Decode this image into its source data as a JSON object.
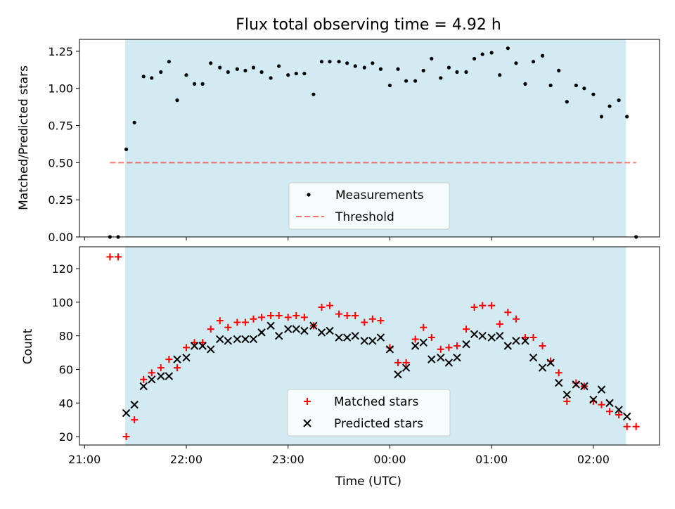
{
  "chart_data": [
    {
      "type": "scatter",
      "title": "Flux total observing time = 4.92 h",
      "ylabel": "Matched/Predicted stars",
      "ylim": [
        0,
        1.33
      ],
      "yticks": [
        "0.00",
        "0.25",
        "0.50",
        "0.75",
        "1.00",
        "1.25"
      ],
      "x_units": "hours after 21:00 UTC",
      "xlim": [
        -0.05,
        5.65
      ],
      "shaded_interval": {
        "start": 0.4,
        "end": 5.32,
        "color": "#add8e6"
      },
      "threshold": {
        "name": "Threshold",
        "value": 0.5,
        "x_range": [
          0.25,
          5.42
        ],
        "color": "#ff0000",
        "style": "dashed"
      },
      "legend": {
        "location": "lower center",
        "entries": [
          "Measurements",
          "Threshold"
        ]
      },
      "series": [
        {
          "name": "Measurements",
          "marker": "dot",
          "color": "#000000",
          "x": [
            0.25,
            0.33,
            0.41,
            0.49,
            0.58,
            0.66,
            0.75,
            0.83,
            0.91,
            1.0,
            1.08,
            1.16,
            1.24,
            1.33,
            1.41,
            1.5,
            1.58,
            1.66,
            1.74,
            1.83,
            1.91,
            2.0,
            2.08,
            2.16,
            2.25,
            2.33,
            2.41,
            2.5,
            2.58,
            2.66,
            2.75,
            2.83,
            2.91,
            3.0,
            3.08,
            3.16,
            3.25,
            3.33,
            3.41,
            3.5,
            3.58,
            3.66,
            3.75,
            3.83,
            3.91,
            4.0,
            4.08,
            4.16,
            4.24,
            4.33,
            4.41,
            4.5,
            4.58,
            4.66,
            4.74,
            4.83,
            4.91,
            5.0,
            5.08,
            5.16,
            5.25,
            5.33,
            5.42
          ],
          "y": [
            0.0,
            0.0,
            0.59,
            0.77,
            1.08,
            1.07,
            1.11,
            1.18,
            0.92,
            1.09,
            1.03,
            1.03,
            1.17,
            1.14,
            1.11,
            1.13,
            1.12,
            1.14,
            1.11,
            1.07,
            1.15,
            1.09,
            1.1,
            1.1,
            0.96,
            1.18,
            1.18,
            1.18,
            1.17,
            1.15,
            1.14,
            1.17,
            1.13,
            1.02,
            1.13,
            1.05,
            1.05,
            1.12,
            1.2,
            1.07,
            1.14,
            1.11,
            1.11,
            1.2,
            1.23,
            1.24,
            1.09,
            1.27,
            1.17,
            1.03,
            1.18,
            1.22,
            1.02,
            1.12,
            0.91,
            1.02,
            1.0,
            0.96,
            0.81,
            0.88,
            0.92,
            0.81,
            0.0
          ]
        }
      ]
    },
    {
      "type": "scatter",
      "xlabel": "Time (UTC)",
      "ylabel": "Count",
      "ylim": [
        15,
        133
      ],
      "yticks": [
        "20",
        "40",
        "60",
        "80",
        "100",
        "120"
      ],
      "xticks": [
        "21:00",
        "22:00",
        "23:00",
        "00:00",
        "01:00",
        "02:00"
      ],
      "x_units": "hours after 21:00 UTC",
      "xlim": [
        -0.05,
        5.65
      ],
      "shaded_interval": {
        "start": 0.4,
        "end": 5.32,
        "color": "#add8e6"
      },
      "legend": {
        "location": "lower center",
        "entries": [
          "Matched stars",
          "Predicted stars"
        ]
      },
      "series": [
        {
          "name": "Matched stars",
          "marker": "plus",
          "color": "#ff0000",
          "x": [
            0.25,
            0.33,
            0.41,
            0.49,
            0.58,
            0.66,
            0.75,
            0.83,
            0.91,
            1.0,
            1.08,
            1.16,
            1.24,
            1.33,
            1.41,
            1.5,
            1.58,
            1.66,
            1.74,
            1.83,
            1.91,
            2.0,
            2.08,
            2.16,
            2.25,
            2.33,
            2.41,
            2.5,
            2.58,
            2.66,
            2.75,
            2.83,
            2.91,
            3.0,
            3.08,
            3.16,
            3.25,
            3.33,
            3.41,
            3.5,
            3.58,
            3.66,
            3.75,
            3.83,
            3.91,
            4.0,
            4.08,
            4.16,
            4.24,
            4.33,
            4.41,
            4.5,
            4.58,
            4.66,
            4.74,
            4.83,
            4.91,
            5.0,
            5.08,
            5.16,
            5.25,
            5.33,
            5.42
          ],
          "y": [
            127,
            127,
            20,
            30,
            54,
            58,
            61,
            66,
            61,
            73,
            76,
            76,
            84,
            89,
            85,
            88,
            88,
            90,
            91,
            92,
            92,
            91,
            92,
            91,
            86,
            97,
            98,
            93,
            92,
            92,
            88,
            90,
            89,
            73,
            64,
            64,
            78,
            85,
            79,
            72,
            73,
            74,
            84,
            97,
            98,
            98,
            87,
            94,
            90,
            79,
            79,
            74,
            65,
            58,
            41,
            52,
            50,
            41,
            39,
            35,
            33,
            26,
            26
          ]
        },
        {
          "name": "Predicted stars",
          "marker": "x",
          "color": "#000000",
          "x": [
            0.41,
            0.49,
            0.58,
            0.66,
            0.75,
            0.83,
            0.91,
            1.0,
            1.08,
            1.16,
            1.24,
            1.33,
            1.41,
            1.5,
            1.58,
            1.66,
            1.74,
            1.83,
            1.91,
            2.0,
            2.08,
            2.16,
            2.25,
            2.33,
            2.41,
            2.5,
            2.58,
            2.66,
            2.75,
            2.83,
            2.91,
            3.0,
            3.08,
            3.16,
            3.25,
            3.33,
            3.41,
            3.5,
            3.58,
            3.66,
            3.75,
            3.83,
            3.91,
            4.0,
            4.08,
            4.16,
            4.24,
            4.33,
            4.41,
            4.5,
            4.58,
            4.66,
            4.74,
            4.83,
            4.91,
            5.0,
            5.08,
            5.16,
            5.25,
            5.33
          ],
          "y": [
            34,
            39,
            50,
            54,
            56,
            56,
            66,
            67,
            74,
            74,
            72,
            78,
            77,
            78,
            78,
            78,
            82,
            86,
            80,
            84,
            84,
            83,
            86,
            82,
            83,
            79,
            79,
            80,
            77,
            77,
            79,
            72,
            57,
            61,
            74,
            76,
            66,
            67,
            64,
            67,
            75,
            81,
            80,
            79,
            80,
            74,
            77,
            77,
            67,
            61,
            64,
            52,
            45,
            51,
            50,
            42,
            48,
            40,
            36,
            32
          ]
        }
      ]
    }
  ]
}
